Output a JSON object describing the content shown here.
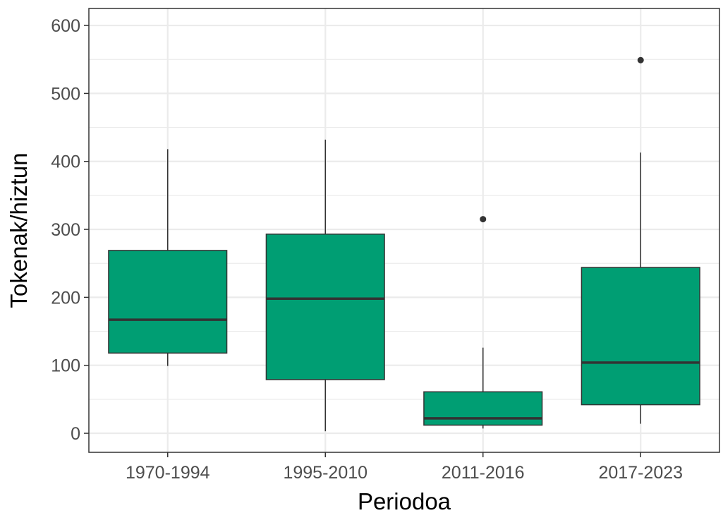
{
  "chart_data": {
    "type": "box",
    "xlabel": "Periodoa",
    "ylabel": "Tokenak/hiztun",
    "ylim": [
      -28,
      625
    ],
    "yticks": [
      0,
      100,
      200,
      300,
      400,
      500,
      600
    ],
    "categories": [
      "1970-1994",
      "1995-2010",
      "2011-2016",
      "2017-2023"
    ],
    "boxes": [
      {
        "category": "1970-1994",
        "min": 99,
        "q1": 118,
        "median": 167,
        "q3": 269,
        "max": 418,
        "outliers": []
      },
      {
        "category": "1995-2010",
        "min": 3,
        "q1": 79,
        "median": 198,
        "q3": 293,
        "max": 432,
        "outliers": []
      },
      {
        "category": "2011-2016",
        "min": 7,
        "q1": 12,
        "median": 22,
        "q3": 61,
        "max": 126,
        "outliers": [
          315
        ]
      },
      {
        "category": "2017-2023",
        "min": 14,
        "q1": 42,
        "median": 104,
        "q3": 244,
        "max": 413,
        "outliers": [
          549
        ]
      }
    ],
    "colors": {
      "box_fill": "#009e73",
      "box_line": "#333333",
      "grid": "#ebebeb",
      "panel_border": "#333333"
    },
    "grid": true,
    "legend": "none"
  }
}
